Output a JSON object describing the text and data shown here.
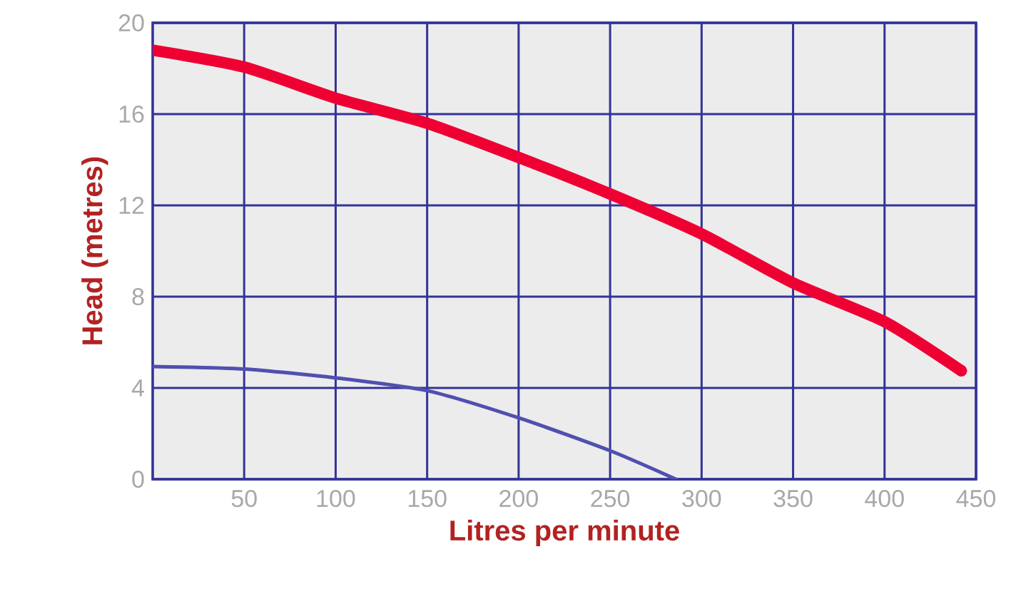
{
  "chart_data": {
    "type": "line",
    "xlabel": "Litres per minute",
    "ylabel": "Head (metres)",
    "xlim": [
      0,
      450
    ],
    "ylim": [
      0,
      20
    ],
    "xticks": [
      50,
      100,
      150,
      200,
      250,
      300,
      350,
      400,
      450
    ],
    "yticks": [
      0,
      4,
      8,
      12,
      16,
      20
    ],
    "grid": true,
    "series": [
      {
        "color": "#ee0033",
        "x": [
          0,
          50,
          100,
          150,
          200,
          250,
          300,
          350,
          400,
          442
        ],
        "values": [
          18.8,
          18.06,
          16.7,
          15.6,
          14.1,
          12.5,
          10.75,
          8.6,
          6.9,
          4.75
        ]
      },
      {
        "color": "#5050b0",
        "x": [
          0,
          50,
          100,
          150,
          200,
          250,
          286
        ],
        "values": [
          4.94,
          4.83,
          4.44,
          3.88,
          2.69,
          1.25,
          0
        ]
      }
    ]
  }
}
